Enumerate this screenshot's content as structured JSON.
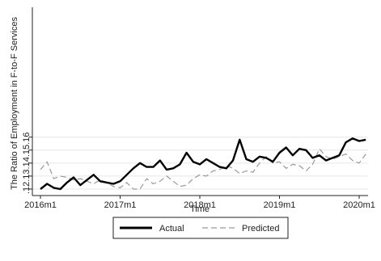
{
  "chart_data": {
    "type": "line",
    "title": "",
    "xlabel": "Time",
    "ylabel": "The Ratio of Employment in F-to-F Services",
    "x_tick_labels": [
      "2016m1",
      "2017m1",
      "2018m1",
      "2019m1",
      "2020m1"
    ],
    "x_tick_positions": [
      0,
      12,
      24,
      36,
      48
    ],
    "y_tick_labels": [
      ".12",
      ".13",
      ".14",
      ".15",
      ".16"
    ],
    "y_tick_values": [
      0.12,
      0.13,
      0.14,
      0.15,
      0.16
    ],
    "ylim": [
      0.115,
      0.26
    ],
    "grid": true,
    "legend_position": "bottom",
    "x": [
      0,
      1,
      2,
      3,
      4,
      5,
      6,
      7,
      8,
      9,
      10,
      11,
      12,
      13,
      14,
      15,
      16,
      17,
      18,
      19,
      20,
      21,
      22,
      23,
      24,
      25,
      26,
      27,
      28,
      29,
      30,
      31,
      32,
      33,
      34,
      35,
      36,
      37,
      38,
      39,
      40,
      41,
      42,
      43,
      44,
      45,
      46,
      47,
      48,
      49
    ],
    "series": [
      {
        "name": "Actual",
        "color": "#000000",
        "dash": "solid",
        "values": [
          0.12,
          0.124,
          0.121,
          0.12,
          0.125,
          0.129,
          0.123,
          0.127,
          0.131,
          0.126,
          0.125,
          0.124,
          0.126,
          0.131,
          0.136,
          0.14,
          0.137,
          0.137,
          0.142,
          0.135,
          0.136,
          0.139,
          0.148,
          0.141,
          0.139,
          0.143,
          0.14,
          0.137,
          0.136,
          0.142,
          0.158,
          0.143,
          0.141,
          0.145,
          0.144,
          0.141,
          0.148,
          0.152,
          0.146,
          0.151,
          0.15,
          0.144,
          0.146,
          0.142,
          0.144,
          0.146,
          0.156,
          0.159,
          0.157,
          0.158
        ]
      },
      {
        "name": "Predicted",
        "color": "#9a9a9a",
        "dash": "dashed",
        "values": [
          0.135,
          0.141,
          0.128,
          0.13,
          0.129,
          0.127,
          0.128,
          0.126,
          0.124,
          0.127,
          0.125,
          0.122,
          0.121,
          0.125,
          0.12,
          0.12,
          0.128,
          0.124,
          0.126,
          0.13,
          0.126,
          0.122,
          0.123,
          0.128,
          0.131,
          0.13,
          0.134,
          0.135,
          0.138,
          0.136,
          0.132,
          0.134,
          0.133,
          0.14,
          0.145,
          0.14,
          0.141,
          0.136,
          0.139,
          0.138,
          0.134,
          0.139,
          0.151,
          0.145,
          0.143,
          0.145,
          0.147,
          0.142,
          0.14,
          0.147
        ]
      }
    ]
  }
}
